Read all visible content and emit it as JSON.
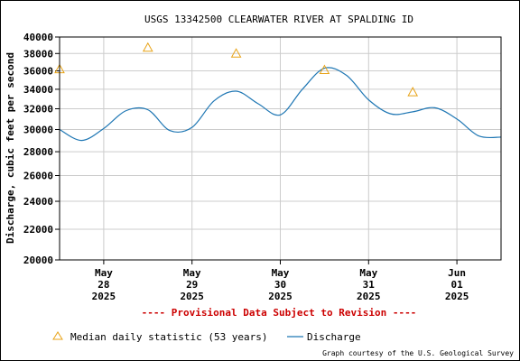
{
  "chart_data": {
    "type": "line",
    "title": "USGS 13342500 CLEARWATER RIVER AT SPALDING ID",
    "ylabel": "Discharge, cubic feet per second",
    "xlabel": "",
    "y_scale": "log",
    "ylim": [
      20000,
      40000
    ],
    "y_ticks": [
      20000,
      22000,
      24000,
      26000,
      28000,
      30000,
      32000,
      34000,
      36000,
      38000,
      40000
    ],
    "y_tick_labels": [
      "20000",
      "22000",
      "24000",
      "26000",
      "28000",
      "30000",
      "32000",
      "34000",
      "36000",
      "38000",
      "40000"
    ],
    "xlim": [
      "2025-05-27T12:00",
      "2025-06-01T12:00"
    ],
    "x_ticks": [
      {
        "x": "2025-05-28T00:00",
        "month": "May",
        "day": "28",
        "year": "2025"
      },
      {
        "x": "2025-05-29T00:00",
        "month": "May",
        "day": "29",
        "year": "2025"
      },
      {
        "x": "2025-05-30T00:00",
        "month": "May",
        "day": "30",
        "year": "2025"
      },
      {
        "x": "2025-05-31T00:00",
        "month": "May",
        "day": "31",
        "year": "2025"
      },
      {
        "x": "2025-06-01T00:00",
        "month": "Jun",
        "day": "01",
        "year": "2025"
      }
    ],
    "grid": true,
    "legend_position": "bottom",
    "series": [
      {
        "name": "Discharge",
        "color": "#1f77b4",
        "x": [
          "2025-05-27T12:00",
          "2025-05-27T18:00",
          "2025-05-28T00:00",
          "2025-05-28T06:00",
          "2025-05-28T12:00",
          "2025-05-28T18:00",
          "2025-05-29T00:00",
          "2025-05-29T06:00",
          "2025-05-29T12:00",
          "2025-05-29T18:00",
          "2025-05-30T00:00",
          "2025-05-30T06:00",
          "2025-05-30T12:00",
          "2025-05-30T18:00",
          "2025-05-31T00:00",
          "2025-05-31T06:00",
          "2025-05-31T12:00",
          "2025-05-31T18:00",
          "2025-06-01T00:00",
          "2025-06-01T06:00",
          "2025-06-01T12:00"
        ],
        "y": [
          30000,
          29000,
          30100,
          31800,
          31900,
          29900,
          30200,
          32800,
          33800,
          32500,
          31400,
          34000,
          36300,
          35500,
          32900,
          31500,
          31700,
          32100,
          31000,
          29400,
          29300
        ]
      },
      {
        "name": "Median daily statistic (53 years)",
        "marker": "triangle",
        "color": "#e8a317",
        "x": [
          "2025-05-27T12:00",
          "2025-05-28T12:00",
          "2025-05-29T12:00",
          "2025-05-30T12:00",
          "2025-05-31T12:00"
        ],
        "y": [
          36200,
          38700,
          38000,
          36100,
          33700
        ]
      }
    ],
    "note": "---- Provisional Data Subject to Revision ----",
    "note_color": "#cc0000",
    "credit": "Graph courtesy of the U.S. Geological Survey"
  }
}
